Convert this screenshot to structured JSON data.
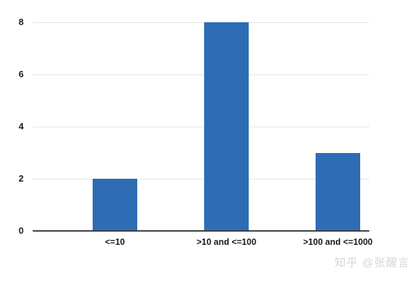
{
  "watermark": {
    "text": "知乎 @张醒言"
  },
  "chart_data": {
    "type": "bar",
    "title": "",
    "xlabel": "",
    "ylabel": "",
    "categories": [
      "<=10",
      ">10 and <=100",
      ">100 and <=1000"
    ],
    "values": [
      2,
      8,
      3
    ],
    "ylim": [
      0,
      8
    ],
    "yticks": [
      0,
      2,
      4,
      6,
      8
    ],
    "grid": true,
    "legend": false,
    "bar_color": "#2e6db4",
    "gridline_color": "#e4e4e4",
    "axis_line_color": "#3d3d3d",
    "tick_label_color": "#1a1a1a",
    "category_label_color": "#1a1a1a",
    "watermark_color": "#d6d6d6"
  }
}
